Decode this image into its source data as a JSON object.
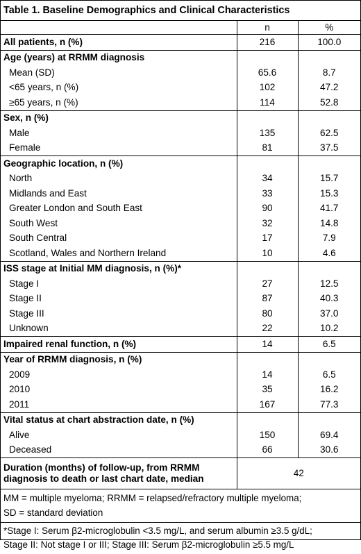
{
  "title": "Table 1. Baseline Demographics and Clinical Characteristics",
  "columns": {
    "n": "n",
    "pct": "%"
  },
  "all_patients": {
    "label": "All patients, n (%)",
    "n": "216",
    "pct": "100.0"
  },
  "age": {
    "header": "Age (years) at RRMM diagnosis",
    "rows": [
      {
        "label": "Mean (SD)",
        "n": "65.6",
        "pct": "8.7"
      },
      {
        "label": "<65 years, n (%)",
        "n": "102",
        "pct": "47.2"
      },
      {
        "label": "≥65 years, n (%)",
        "n": "114",
        "pct": "52.8"
      }
    ]
  },
  "sex": {
    "header": "Sex, n (%)",
    "rows": [
      {
        "label": "Male",
        "n": "135",
        "pct": "62.5"
      },
      {
        "label": "Female",
        "n": "81",
        "pct": "37.5"
      }
    ]
  },
  "geo": {
    "header": "Geographic location, n (%)",
    "rows": [
      {
        "label": "North",
        "n": "34",
        "pct": "15.7"
      },
      {
        "label": "Midlands and East",
        "n": "33",
        "pct": "15.3"
      },
      {
        "label": "Greater London and South East",
        "n": "90",
        "pct": "41.7"
      },
      {
        "label": "South West",
        "n": "32",
        "pct": "14.8"
      },
      {
        "label": "South Central",
        "n": "17",
        "pct": "7.9"
      },
      {
        "label": "Scotland, Wales and Northern Ireland",
        "n": "10",
        "pct": "4.6"
      }
    ]
  },
  "iss": {
    "header": "ISS stage at Initial MM diagnosis, n (%)*",
    "rows": [
      {
        "label": "Stage I",
        "n": "27",
        "pct": "12.5"
      },
      {
        "label": "Stage II",
        "n": "87",
        "pct": "40.3"
      },
      {
        "label": "Stage III",
        "n": "80",
        "pct": "37.0"
      },
      {
        "label": "Unknown",
        "n": "22",
        "pct": "10.2"
      }
    ]
  },
  "renal": {
    "label": "Impaired renal function, n (%)",
    "n": "14",
    "pct": "6.5"
  },
  "year": {
    "header": "Year of RRMM diagnosis, n (%)",
    "rows": [
      {
        "label": "2009",
        "n": "14",
        "pct": "6.5"
      },
      {
        "label": "2010",
        "n": "35",
        "pct": "16.2"
      },
      {
        "label": "2011",
        "n": "167",
        "pct": "77.3"
      }
    ]
  },
  "vital": {
    "header": "Vital status at chart abstraction date, n (%)",
    "rows": [
      {
        "label": "Alive",
        "n": "150",
        "pct": "69.4"
      },
      {
        "label": "Deceased",
        "n": "66",
        "pct": "30.6"
      }
    ]
  },
  "duration": {
    "line1": "Duration  (months) of follow-up, from RRMM",
    "line2": "diagnosis to death or last chart date, median",
    "value": "42"
  },
  "footnotes": {
    "abbrev_line1": "MM = multiple myeloma; RRMM = relapsed/refractory multiple myeloma;",
    "abbrev_line2": "SD = standard deviation",
    "stage_line1": "*Stage I: Serum β2-microglobulin <3.5 mg/L, and   serum albumin ≥3.5 g/dL;",
    "stage_line2": "Stage II: Not stage I or III; Stage III: Serum β2-microglobulin ≥5.5 mg/L"
  }
}
